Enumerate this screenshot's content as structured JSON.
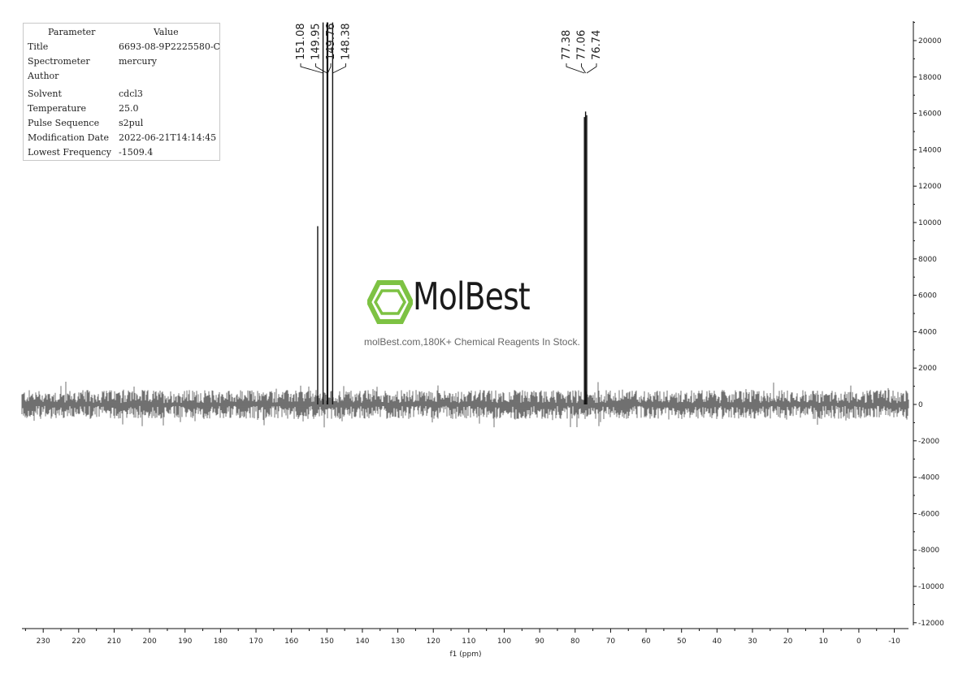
{
  "params": {
    "header_param": "Parameter",
    "header_value": "Value",
    "rows": [
      {
        "k": "Title",
        "v": "6693-08-9P2225580-C"
      },
      {
        "k": "Spectrometer",
        "v": "mercury"
      },
      {
        "k": "Author",
        "v": ""
      },
      {
        "k": "Solvent",
        "v": "cdcl3"
      },
      {
        "k": "Temperature",
        "v": "25.0"
      },
      {
        "k": "Pulse Sequence",
        "v": "s2pul"
      },
      {
        "k": "Modification Date",
        "v": "2022-06-21T14:14:45"
      },
      {
        "k": "Lowest Frequency",
        "v": "-1509.4"
      }
    ]
  },
  "watermark": {
    "name": "MolBest",
    "tagline": "molBest.com,180K+ Chemical Reagents In Stock.",
    "logo_color": "#7dc243",
    "logo_icon": "benzene-hexagon-icon"
  },
  "chart_data": {
    "type": "line",
    "xlabel": "f1 (ppm)",
    "ylabel": "",
    "xlim": [
      236,
      -14
    ],
    "ylim": [
      -12000,
      21000
    ],
    "x_ticks": [
      230,
      220,
      210,
      200,
      190,
      180,
      170,
      160,
      150,
      140,
      130,
      120,
      110,
      100,
      90,
      80,
      70,
      60,
      50,
      40,
      30,
      20,
      10,
      0,
      -10
    ],
    "y_ticks": [
      20000,
      18000,
      16000,
      14000,
      12000,
      10000,
      8000,
      6000,
      4000,
      2000,
      0,
      -2000,
      -4000,
      -6000,
      -8000,
      -10000,
      -12000
    ],
    "noise_amplitude": 800,
    "peaks": [
      {
        "ppm": 152.6,
        "intensity": 9800
      },
      {
        "ppm": 151.08,
        "intensity": 21000
      },
      {
        "ppm": 149.95,
        "intensity": 21000
      },
      {
        "ppm": 149.76,
        "intensity": 21000
      },
      {
        "ppm": 148.38,
        "intensity": 21000
      },
      {
        "ppm": 77.38,
        "intensity": 15800
      },
      {
        "ppm": 77.06,
        "intensity": 16100
      },
      {
        "ppm": 76.74,
        "intensity": 15900
      }
    ],
    "peak_labels": {
      "group1": [
        "151.08",
        "149.95",
        "149.76",
        "148.38"
      ],
      "group2": [
        "77.38",
        "77.06",
        "76.74"
      ]
    },
    "line_color": "#111111"
  }
}
